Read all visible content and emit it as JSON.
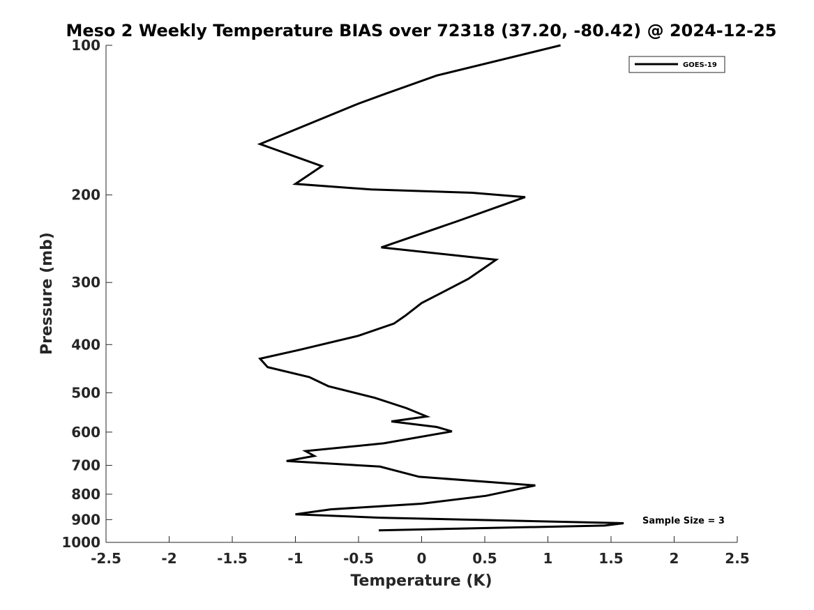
{
  "chart_data": {
    "type": "line",
    "title": "Meso 2 Weekly Temperature BIAS over 72318 (37.20, -80.42) @ 2024-12-25",
    "xlabel": "Temperature (K)",
    "ylabel": "Pressure (mb)",
    "xlim": [
      -2.5,
      2.5
    ],
    "ylim": [
      100,
      1000
    ],
    "yscale": "log",
    "yreversed": true,
    "x_ticks": [
      -2.5,
      -2,
      -1.5,
      -1,
      -0.5,
      0,
      0.5,
      1,
      1.5,
      2,
      2.5
    ],
    "x_tick_labels": [
      "-2.5",
      "-2",
      "-1.5",
      "-1",
      "-0.5",
      "0",
      "0.5",
      "1",
      "1.5",
      "2",
      "2.5"
    ],
    "y_ticks": [
      100,
      200,
      300,
      400,
      500,
      600,
      700,
      800,
      900,
      1000
    ],
    "y_tick_labels": [
      "100",
      "200",
      "300",
      "400",
      "500",
      "600",
      "700",
      "800",
      "900",
      "1000"
    ],
    "grid": false,
    "legend_position": "top-right",
    "annotation": "Sample Size = 3",
    "series": [
      {
        "name": "GOES-19",
        "color": "#000000",
        "points": [
          [
            1.1,
            100
          ],
          [
            0.12,
            115
          ],
          [
            -0.28,
            125
          ],
          [
            -0.5,
            131
          ],
          [
            -1.28,
            158
          ],
          [
            -0.79,
            175
          ],
          [
            -1.0,
            190
          ],
          [
            -0.4,
            195
          ],
          [
            0.4,
            198
          ],
          [
            0.82,
            202
          ],
          [
            0.28,
            226
          ],
          [
            -0.32,
            255
          ],
          [
            0.59,
            270
          ],
          [
            0.37,
            295
          ],
          [
            0.0,
            330
          ],
          [
            -0.13,
            350
          ],
          [
            -0.22,
            363
          ],
          [
            -0.5,
            384
          ],
          [
            -0.97,
            410
          ],
          [
            -1.28,
            427
          ],
          [
            -1.22,
            444
          ],
          [
            -0.89,
            465
          ],
          [
            -0.74,
            485
          ],
          [
            -0.37,
            512
          ],
          [
            -0.12,
            537
          ],
          [
            0.04,
            558
          ],
          [
            -0.24,
            571
          ],
          [
            0.12,
            586
          ],
          [
            0.24,
            598
          ],
          [
            -0.3,
            632
          ],
          [
            -0.92,
            655
          ],
          [
            -0.85,
            670
          ],
          [
            -1.07,
            686
          ],
          [
            -0.33,
            704
          ],
          [
            -0.02,
            738
          ],
          [
            0.9,
            768
          ],
          [
            0.51,
            806
          ],
          [
            0.0,
            836
          ],
          [
            -0.72,
            858
          ],
          [
            -1.0,
            878
          ],
          [
            -0.33,
            892
          ],
          [
            1.6,
            915
          ],
          [
            1.45,
            925
          ],
          [
            0.3,
            938
          ],
          [
            -0.34,
            946
          ]
        ]
      }
    ]
  }
}
